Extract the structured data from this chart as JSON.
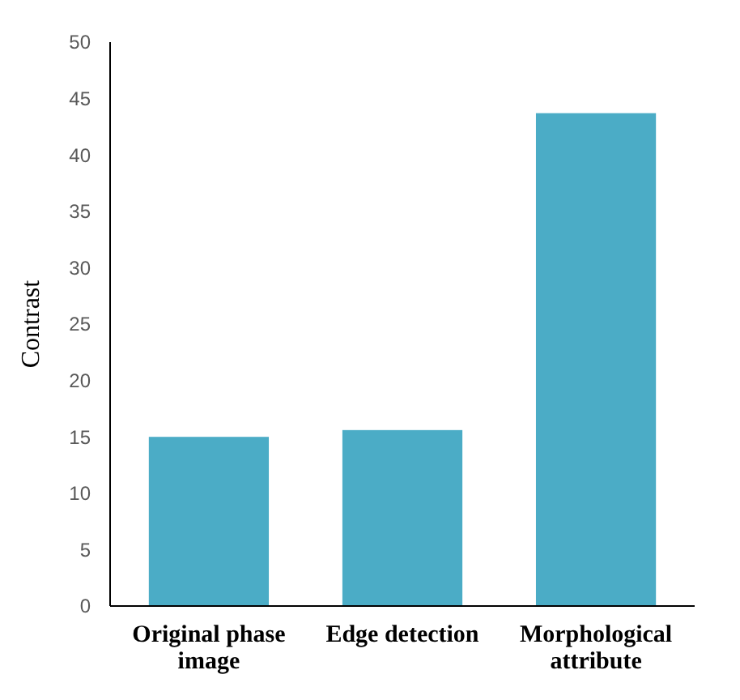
{
  "chart_data": {
    "type": "bar",
    "ylabel": "Contrast",
    "categories": [
      "Original phase image",
      "Edge detection",
      "Morphological attribute"
    ],
    "values": [
      15.0,
      15.6,
      43.7
    ],
    "color": "#4bacc6",
    "ylim": [
      0,
      50
    ],
    "yticks": [
      0,
      5,
      10,
      15,
      20,
      25,
      30,
      35,
      40,
      45,
      50
    ],
    "grid": false
  }
}
